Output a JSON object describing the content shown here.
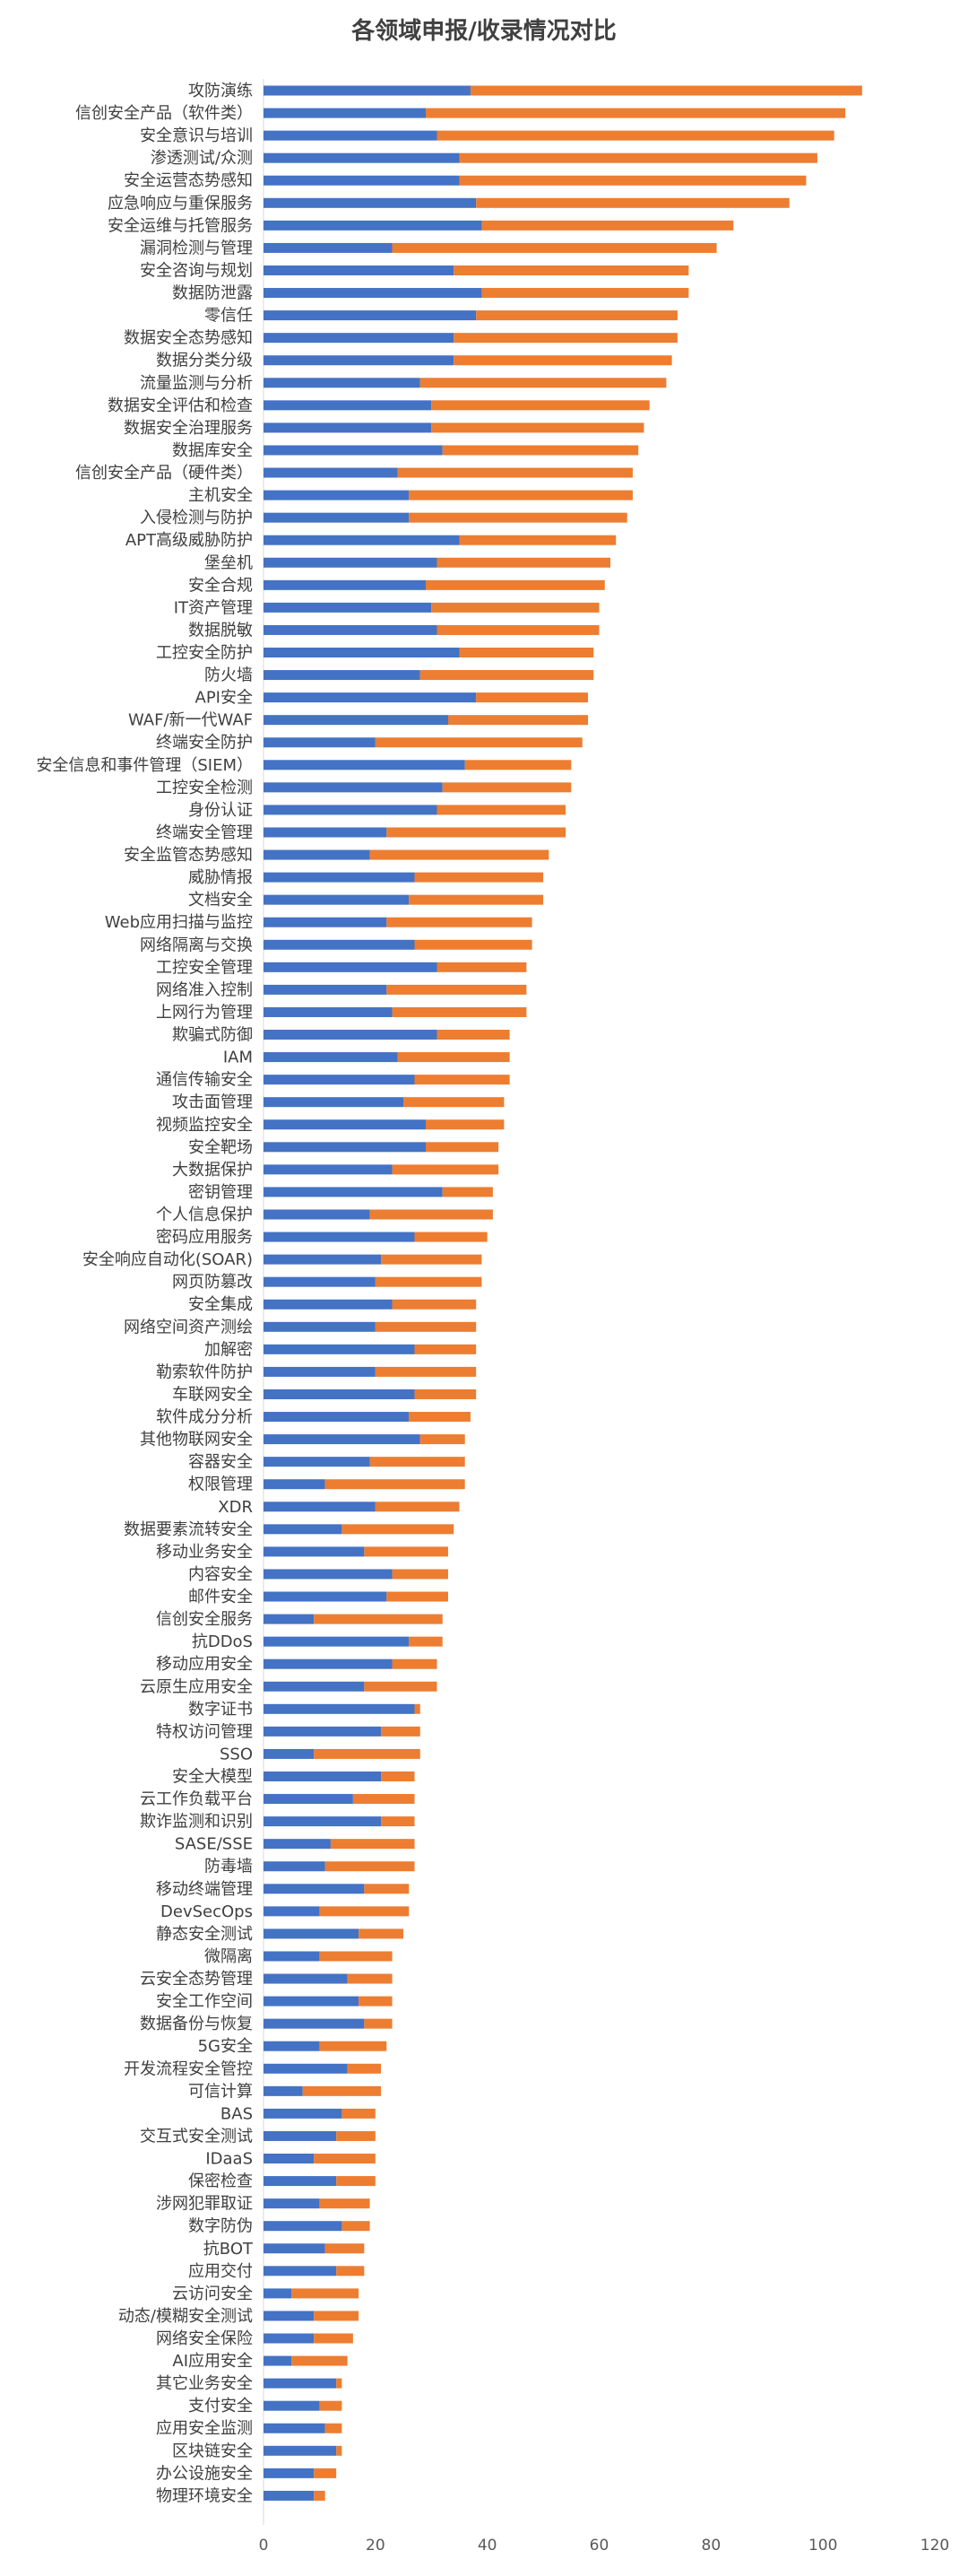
{
  "chart_data": {
    "type": "bar",
    "orientation": "horizontal",
    "stacked": true,
    "title": "各领域申报/收录情况对比",
    "xlim": [
      0,
      120
    ],
    "xticks": [
      0,
      20,
      40,
      60,
      80,
      100,
      120
    ],
    "grid": false,
    "legend": "none",
    "colors": [
      "#4472C4",
      "#ED7D31"
    ],
    "categories": [
      "攻防演练",
      "信创安全产品（软件类）",
      "安全意识与培训",
      "渗透测试/众测",
      "安全运营态势感知",
      "应急响应与重保服务",
      "安全运维与托管服务",
      "漏洞检测与管理",
      "安全咨询与规划",
      "数据防泄露",
      "零信任",
      "数据安全态势感知",
      "数据分类分级",
      "流量监测与分析",
      "数据安全评估和检查",
      "数据安全治理服务",
      "数据库安全",
      "信创安全产品（硬件类）",
      "主机安全",
      "入侵检测与防护",
      "APT高级威胁防护",
      "堡垒机",
      "安全合规",
      "IT资产管理",
      "数据脱敏",
      "工控安全防护",
      "防火墙",
      "API安全",
      "WAF/新一代WAF",
      "终端安全防护",
      "安全信息和事件管理（SIEM）",
      "工控安全检测",
      "身份认证",
      "终端安全管理",
      "安全监管态势感知",
      "威胁情报",
      "文档安全",
      "Web应用扫描与监控",
      "网络隔离与交换",
      "工控安全管理",
      "网络准入控制",
      "上网行为管理",
      "欺骗式防御",
      "IAM",
      "通信传输安全",
      "攻击面管理",
      "视频监控安全",
      "安全靶场",
      "大数据保护",
      "密钥管理",
      "个人信息保护",
      "密码应用服务",
      "安全响应自动化(SOAR)",
      "网页防篡改",
      "安全集成",
      "网络空间资产测绘",
      "加解密",
      "勒索软件防护",
      "车联网安全",
      "软件成分分析",
      "其他物联网安全",
      "容器安全",
      "权限管理",
      "XDR",
      "数据要素流转安全",
      "移动业务安全",
      "内容安全",
      "邮件安全",
      "信创安全服务",
      "抗DDoS",
      "移动应用安全",
      "云原生应用安全",
      "数字证书",
      "特权访问管理",
      "SSO",
      "安全大模型",
      "云工作负载平台",
      "欺诈监测和识别",
      "SASE/SSE",
      "防毒墙",
      "移动终端管理",
      "DevSecOps",
      "静态安全测试",
      "微隔离",
      "云安全态势管理",
      "安全工作空间",
      "数据备份与恢复",
      "5G安全",
      "开发流程安全管控",
      "可信计算",
      "BAS",
      "交互式安全测试",
      "IDaaS",
      "保密检查",
      "涉网犯罪取证",
      "数字防伪",
      "抗BOT",
      "应用交付",
      "云访问安全",
      "动态/模糊安全测试",
      "网络安全保险",
      "AI应用安全",
      "其它业务安全",
      "支付安全",
      "应用安全监测",
      "区块链安全",
      "办公设施安全",
      "物理环境安全"
    ],
    "series": [
      {
        "values": [
          37,
          29,
          31,
          35,
          35,
          38,
          39,
          23,
          34,
          39,
          38,
          34,
          34,
          28,
          30,
          30,
          32,
          24,
          26,
          26,
          35,
          31,
          29,
          30,
          31,
          35,
          28,
          38,
          33,
          20,
          36,
          32,
          31,
          22,
          19,
          27,
          26,
          22,
          27,
          31,
          22,
          23,
          31,
          24,
          27,
          25,
          29,
          29,
          23,
          32,
          19,
          27,
          21,
          20,
          23,
          20,
          27,
          20,
          27,
          26,
          28,
          19,
          11,
          20,
          14,
          18,
          23,
          22,
          9,
          26,
          23,
          18,
          27,
          21,
          9,
          21,
          16,
          21,
          12,
          11,
          18,
          10,
          17,
          10,
          15,
          17,
          18,
          10,
          15,
          7,
          14,
          13,
          9,
          13,
          10,
          14,
          11,
          13,
          5,
          9,
          9,
          5,
          13,
          10,
          11,
          13,
          9,
          9
        ],
        "totals": [
          107,
          104,
          102,
          99,
          97,
          94,
          84,
          81,
          76,
          76,
          74,
          74,
          73,
          72,
          69,
          68,
          67,
          66,
          66,
          65,
          63,
          62,
          61,
          60,
          60,
          59,
          59,
          58,
          58,
          57,
          55,
          55,
          54,
          54,
          51,
          50,
          50,
          48,
          48,
          47,
          47,
          47,
          44,
          44,
          44,
          43,
          43,
          42,
          42,
          41,
          41,
          40,
          39,
          39,
          38,
          38,
          38,
          38,
          38,
          37,
          36,
          36,
          36,
          35,
          34,
          33,
          33,
          33,
          32,
          32,
          31,
          31,
          28,
          28,
          28,
          27,
          27,
          27,
          27,
          27,
          26,
          26,
          25,
          23,
          23,
          23,
          23,
          22,
          21,
          21,
          20,
          20,
          20,
          20,
          19,
          19,
          18,
          18,
          17,
          17,
          16,
          15,
          14,
          14,
          14,
          14,
          13,
          11
        ]
      }
    ]
  }
}
